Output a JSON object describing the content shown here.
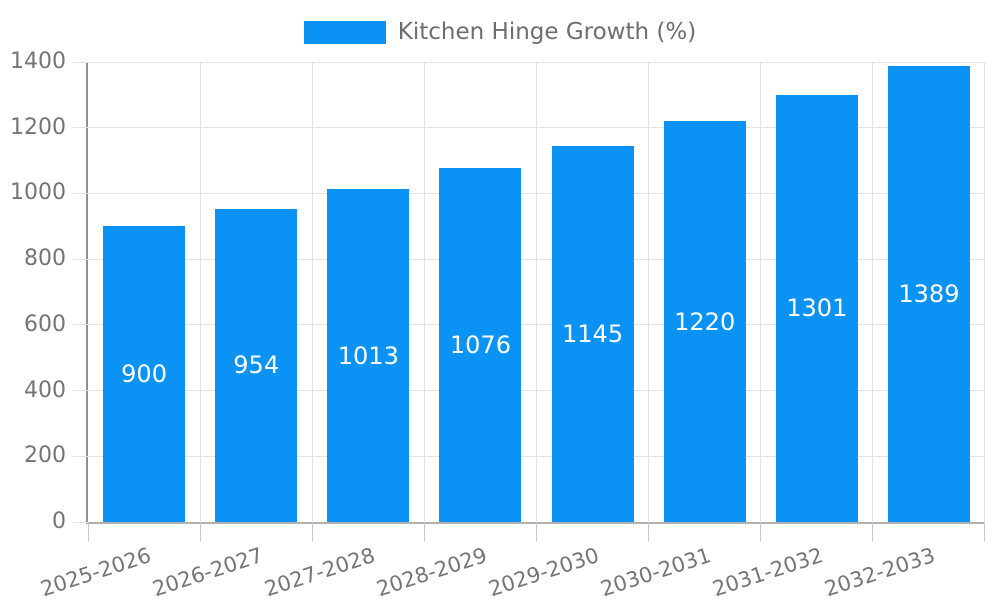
{
  "chart": {
    "legend_label": "Kitchen Hinge Growth (%)"
  },
  "colors": {
    "bar_fill": "#0a93f5",
    "grid_line": "#e3e3e3",
    "y_axis_line": "#8f8f8f",
    "x_axis_line": "#b0b0b0",
    "x_tick_line": "#c9c9c9",
    "tick_label_text": "#757575",
    "legend_text": "#6e6e6e",
    "bar_value_text": "#ffffff",
    "background": "#ffffff"
  },
  "chart_data": {
    "type": "bar",
    "title": "",
    "xlabel": "",
    "ylabel": "",
    "series_name": "Kitchen Hinge Growth (%)",
    "categories": [
      "2025-2026",
      "2026-2027",
      "2027-2028",
      "2028-2029",
      "2029-2030",
      "2030-2031",
      "2031-2032",
      "2032-2033"
    ],
    "values": [
      900,
      954,
      1013,
      1076,
      1145,
      1220,
      1301,
      1389
    ],
    "ylim": [
      0,
      1400
    ],
    "yticks": [
      0,
      200,
      400,
      600,
      800,
      1000,
      1200,
      1400
    ],
    "grid": true,
    "legend_position": "top",
    "bar_value_labels_shown": true,
    "x_tick_rotation_deg": -18
  }
}
